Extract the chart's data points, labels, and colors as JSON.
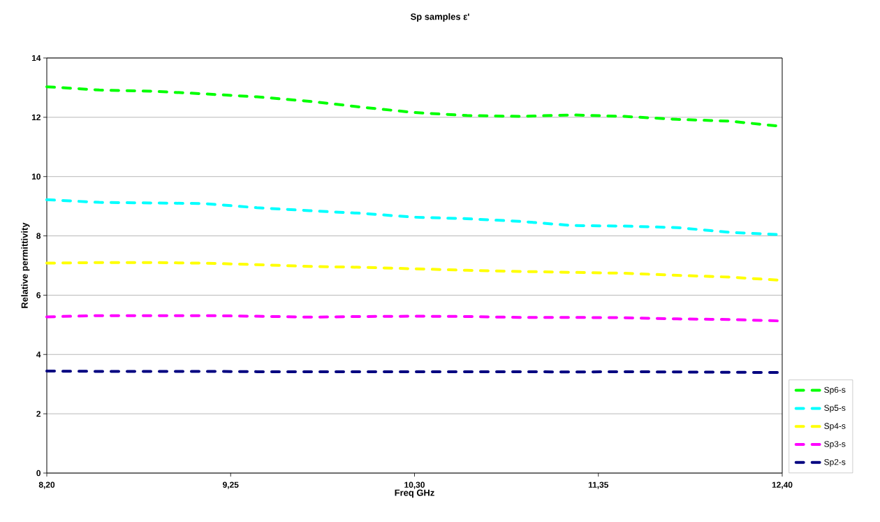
{
  "chart_data": {
    "type": "line",
    "title": "Sp samples ε'",
    "xlabel": "Freq GHz",
    "ylabel": "Relative permittivity",
    "x": [
      8.2,
      8.5,
      8.8,
      9.1,
      9.4,
      9.7,
      10.0,
      10.3,
      10.6,
      10.9,
      11.2,
      11.5,
      11.8,
      12.1,
      12.4
    ],
    "series": [
      {
        "name": "Sp6-s",
        "color": "#00ff00",
        "values": [
          13.03,
          12.92,
          12.88,
          12.79,
          12.69,
          12.54,
          12.34,
          12.16,
          12.06,
          12.03,
          12.08,
          12.03,
          11.93,
          11.87,
          11.69
        ]
      },
      {
        "name": "Sp5-s",
        "color": "#00ffff",
        "values": [
          9.22,
          9.13,
          9.11,
          9.09,
          8.95,
          8.85,
          8.76,
          8.63,
          8.58,
          8.49,
          8.35,
          8.33,
          8.28,
          8.12,
          8.04
        ]
      },
      {
        "name": "Sp4-s",
        "color": "#ffff00",
        "values": [
          7.08,
          7.1,
          7.1,
          7.08,
          7.03,
          6.97,
          6.94,
          6.89,
          6.84,
          6.8,
          6.77,
          6.74,
          6.67,
          6.61,
          6.5
        ]
      },
      {
        "name": "Sp3-s",
        "color": "#ff00ff",
        "values": [
          5.27,
          5.31,
          5.31,
          5.31,
          5.29,
          5.26,
          5.28,
          5.29,
          5.28,
          5.25,
          5.25,
          5.24,
          5.2,
          5.18,
          5.13
        ]
      },
      {
        "name": "Sp2-s",
        "color": "#000080",
        "values": [
          3.44,
          3.43,
          3.43,
          3.43,
          3.42,
          3.42,
          3.42,
          3.42,
          3.42,
          3.42,
          3.41,
          3.42,
          3.41,
          3.4,
          3.39
        ]
      }
    ],
    "xlim": [
      8.2,
      12.4
    ],
    "xticks": [
      {
        "value": 8.2,
        "label": "8,20"
      },
      {
        "value": 9.25,
        "label": "9,25"
      },
      {
        "value": 10.3,
        "label": "10,30"
      },
      {
        "value": 11.35,
        "label": "11,35"
      },
      {
        "value": 12.4,
        "label": "12,40"
      }
    ],
    "ylim": [
      0,
      14
    ],
    "yticks": [
      0,
      2,
      4,
      6,
      8,
      10,
      12,
      14
    ],
    "grid": "y",
    "legend": "right",
    "marker": "none",
    "line_style": "dashed"
  }
}
